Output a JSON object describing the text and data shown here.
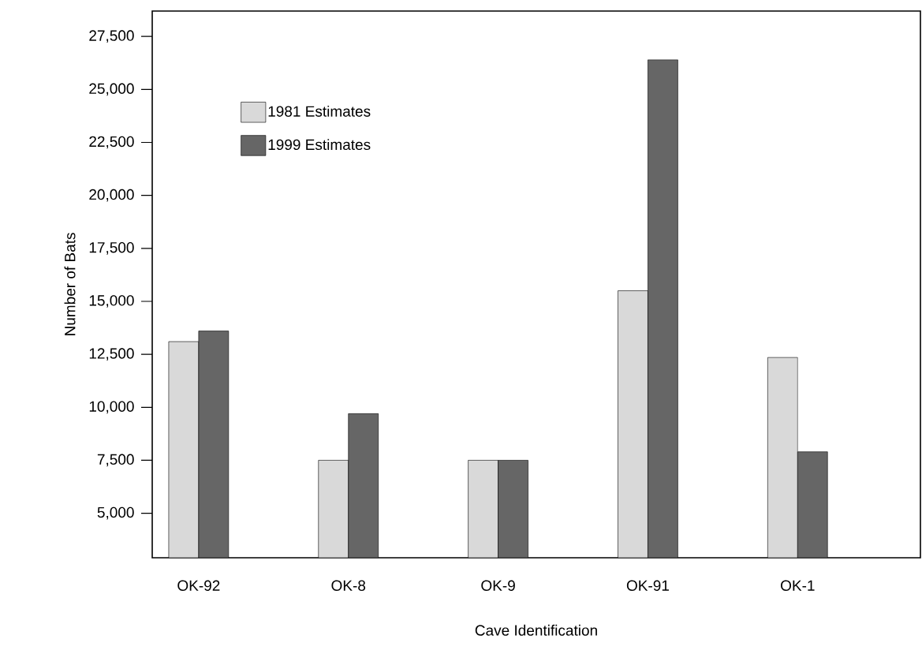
{
  "chart_data": {
    "type": "bar",
    "xlabel": "Cave Identification",
    "ylabel": "Number of  Bats",
    "categories": [
      "OK-92",
      "OK-8",
      "OK-9",
      "OK-91",
      "OK-1"
    ],
    "series": [
      {
        "name": "1981 Estimates",
        "color": "#d9d9d9",
        "values": [
          13100,
          7500,
          7500,
          15500,
          12350
        ]
      },
      {
        "name": "1999 Estimates",
        "color": "#666666",
        "values": [
          13600,
          9700,
          7500,
          26400,
          7900
        ]
      }
    ],
    "ylim": [
      2900,
      28700
    ],
    "yticks": [
      {
        "value": 5000,
        "label": "5,000"
      },
      {
        "value": 7500,
        "label": "7,500"
      },
      {
        "value": 10000,
        "label": "10,000"
      },
      {
        "value": 12500,
        "label": "12,500"
      },
      {
        "value": 15000,
        "label": "15,000"
      },
      {
        "value": 17500,
        "label": "17,500"
      },
      {
        "value": 20000,
        "label": "20,000"
      },
      {
        "value": 22500,
        "label": "22,500"
      },
      {
        "value": 25000,
        "label": "25,000"
      },
      {
        "value": 27500,
        "label": "27,500"
      }
    ],
    "legend": "top left",
    "grid": false
  }
}
